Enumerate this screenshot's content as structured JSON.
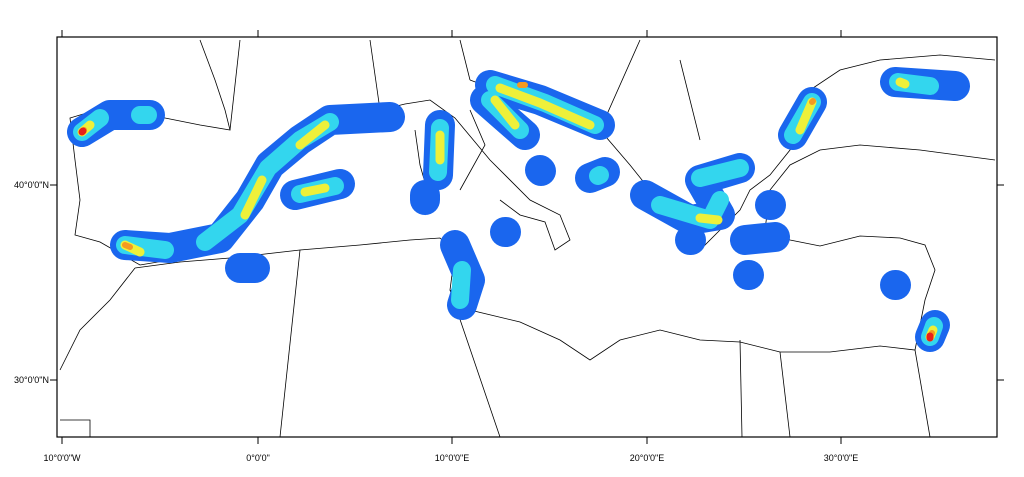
{
  "map": {
    "x_labels": [
      "10°0'0\"W",
      "0°0'0\"",
      "10°0'0\"E",
      "20°0'0\"E",
      "30°0'0\"E"
    ],
    "y_labels": [
      "40°0'0\"N",
      "30°0'0\"N"
    ]
  }
}
